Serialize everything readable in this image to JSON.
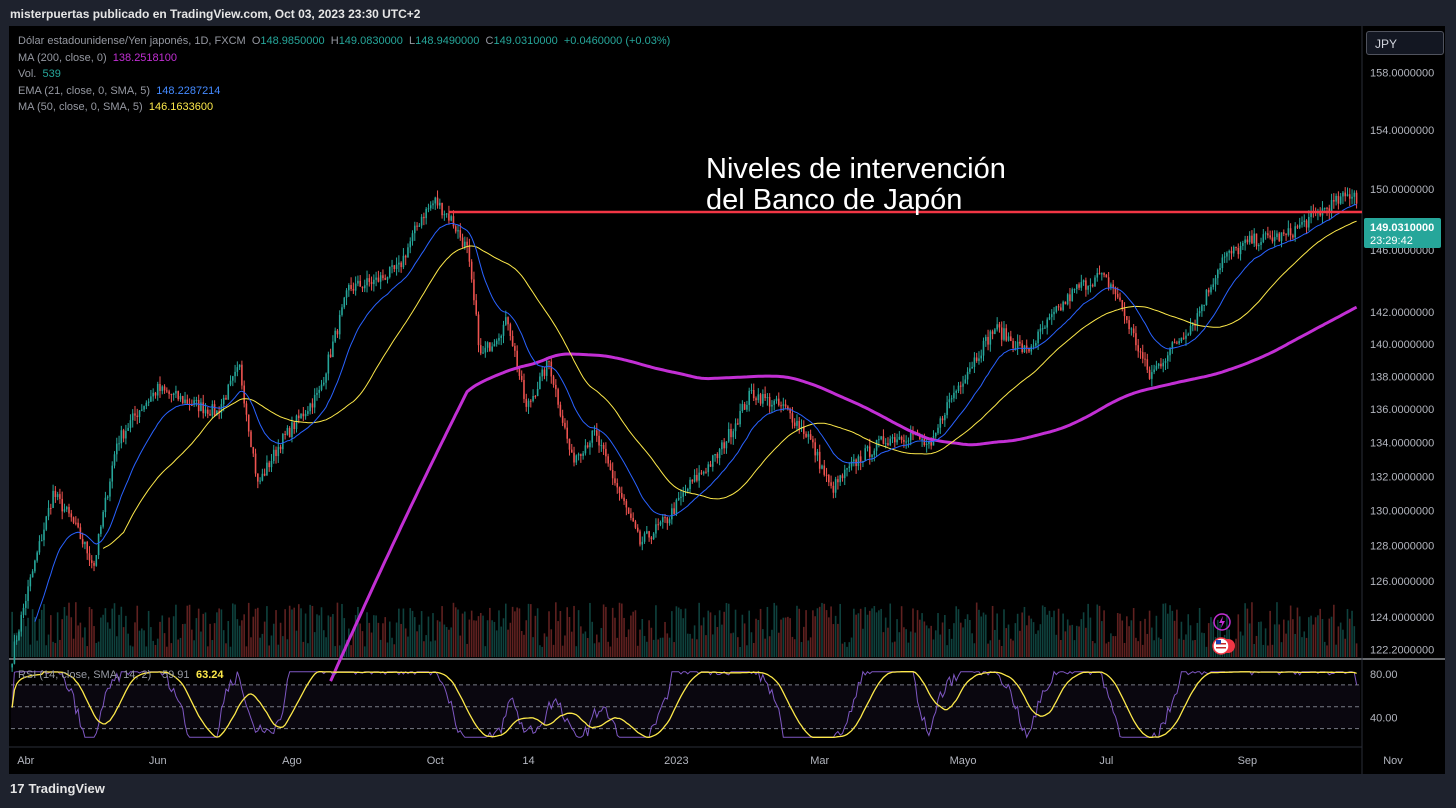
{
  "header": {
    "published": "misterpuertas publicado en TradingView.com, Oct 03, 2023 23:30 UTC+2"
  },
  "footer": {
    "brand": "TradingView",
    "brand_mark": "17"
  },
  "currency_button": "JPY",
  "legend": {
    "symbol": "Dólar estadounidense/Yen japonés, 1D, FXCM",
    "ohlc": {
      "o_label": "O",
      "o": "148.9850000",
      "h_label": "H",
      "h": "149.0830000",
      "l_label": "L",
      "l": "148.9490000",
      "c_label": "C",
      "c": "149.0310000",
      "change": "+0.0460000 (+0.03%)"
    },
    "ma200": {
      "label": "MA (200, close, 0)",
      "value": "138.2518100"
    },
    "vol": {
      "label": "Vol.",
      "value": "539"
    },
    "ema21": {
      "label": "EMA (21, close, 0, SMA, 5)",
      "value": "148.2287214"
    },
    "ma50": {
      "label": "MA (50, close, 0, SMA, 5)",
      "value": "146.1633600"
    }
  },
  "colors": {
    "background": "#000000",
    "up": "#26a69a",
    "down": "#ef5350",
    "ma200": "#c22fd4",
    "ema21": "#2962ff",
    "ma50": "#fde94a",
    "resistance": "#f23645",
    "rsi": "#7e57c2",
    "rsi_ma": "#fde94a"
  },
  "chart_data": {
    "type": "candlestick",
    "title": "Dólar estadounidense/Yen japonés, 1D, FXCM",
    "annotation": [
      "Niveles de intervención",
      "del Banco de Japón"
    ],
    "price_axis": {
      "scale": "log",
      "ylim": [
        121.8,
        161.0
      ],
      "ticks": [
        "158.0000000",
        "154.0000000",
        "150.0000000",
        "146.0000000",
        "142.0000000",
        "140.0000000",
        "138.0000000",
        "136.0000000",
        "134.0000000",
        "132.0000000",
        "130.0000000",
        "128.0000000",
        "126.0000000",
        "124.0000000",
        "122.2000000"
      ]
    },
    "last_price": {
      "value": "149.0310000",
      "countdown": "23:29:42"
    },
    "resistance_level": 150.0,
    "x_axis": {
      "labels": [
        "Abr",
        "Jun",
        "Ago",
        "Oct",
        "14",
        "2023",
        "Mar",
        "Mayo",
        "Jul",
        "Sep",
        "Nov"
      ],
      "label_bars": [
        6,
        64,
        123,
        186,
        227,
        292,
        355,
        418,
        481,
        543,
        607
      ]
    },
    "bars_shown": 592,
    "close_path": [
      [
        0,
        121.8
      ],
      [
        6,
        125.0
      ],
      [
        18,
        131.0
      ],
      [
        26,
        129.5
      ],
      [
        36,
        126.9
      ],
      [
        46,
        134.0
      ],
      [
        56,
        136.0
      ],
      [
        64,
        137.2
      ],
      [
        78,
        136.4
      ],
      [
        90,
        135.8
      ],
      [
        100,
        138.5
      ],
      [
        108,
        131.5
      ],
      [
        118,
        134.0
      ],
      [
        135,
        137.0
      ],
      [
        148,
        143.5
      ],
      [
        160,
        144.0
      ],
      [
        170,
        144.8
      ],
      [
        180,
        148.2
      ],
      [
        186,
        149.2
      ],
      [
        193,
        148.0
      ],
      [
        200,
        146.0
      ],
      [
        206,
        139.2
      ],
      [
        218,
        141.5
      ],
      [
        226,
        136.0
      ],
      [
        236,
        138.9
      ],
      [
        246,
        133.0
      ],
      [
        256,
        134.5
      ],
      [
        264,
        132.0
      ],
      [
        276,
        128.1
      ],
      [
        288,
        129.5
      ],
      [
        298,
        131.5
      ],
      [
        310,
        133.2
      ],
      [
        325,
        137.0
      ],
      [
        340,
        136.0
      ],
      [
        350,
        134.4
      ],
      [
        360,
        131.2
      ],
      [
        372,
        133.0
      ],
      [
        384,
        134.2
      ],
      [
        396,
        134.5
      ],
      [
        404,
        133.6
      ],
      [
        410,
        136.0
      ],
      [
        420,
        138.4
      ],
      [
        432,
        141.0
      ],
      [
        446,
        139.5
      ],
      [
        458,
        141.8
      ],
      [
        468,
        143.5
      ],
      [
        478,
        144.3
      ],
      [
        484,
        143.6
      ],
      [
        490,
        141.5
      ],
      [
        500,
        138.0
      ],
      [
        510,
        139.8
      ],
      [
        520,
        141.5
      ],
      [
        532,
        145.4
      ],
      [
        545,
        146.6
      ],
      [
        560,
        146.9
      ],
      [
        576,
        148.6
      ],
      [
        590,
        149.8
      ],
      [
        592,
        149.03
      ]
    ],
    "rsi": {
      "label": "RSI (14, close, SMA, 14, 2)",
      "values_label": [
        "59.91",
        "63.24"
      ],
      "ylim": [
        15,
        90
      ],
      "ticks": [
        "80.00",
        "40.00"
      ],
      "bands": [
        70,
        50,
        30
      ]
    }
  }
}
